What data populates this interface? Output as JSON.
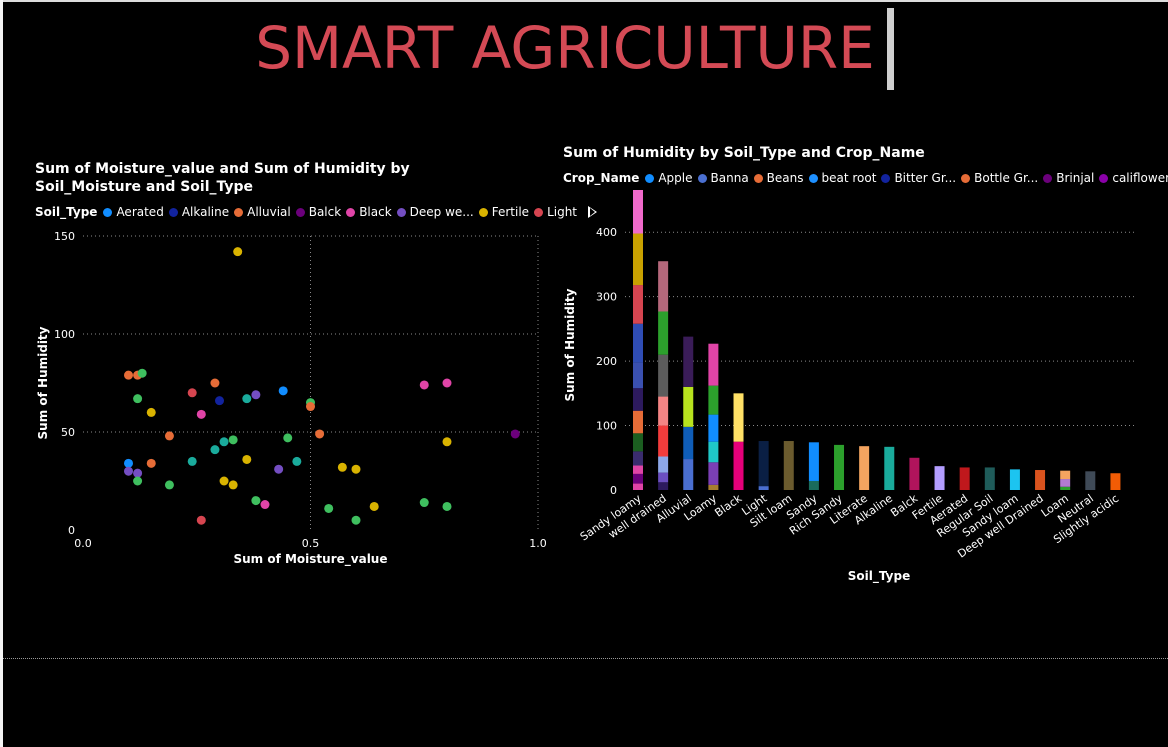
{
  "page": {
    "title": "SMART AGRICULTURE"
  },
  "chart_data": [
    {
      "type": "scatter",
      "title": "Sum of Moisture_value and Sum of Humidity by Soil_Moisture and Soil_Type",
      "xlabel": "Sum of Moisture_value",
      "ylabel": "Sum of Humidity",
      "xlim": [
        0,
        1
      ],
      "ylim": [
        0,
        150
      ],
      "x_ticks": [
        "0.0",
        "0.5",
        "1.0"
      ],
      "y_ticks": [
        "0",
        "50",
        "100",
        "150"
      ],
      "grid": true,
      "legend": {
        "title": "Soil_Type",
        "placement": "top",
        "entries": [
          {
            "name": "Aerated",
            "color": "#118DFF"
          },
          {
            "name": "Alkaline",
            "color": "#12239E"
          },
          {
            "name": "Alluvial",
            "color": "#E66C37"
          },
          {
            "name": "Balck",
            "color": "#6B007B"
          },
          {
            "name": "Black",
            "color": "#E044A7"
          },
          {
            "name": "Deep we...",
            "color": "#744EC2"
          },
          {
            "name": "Fertile",
            "color": "#D9B300"
          },
          {
            "name": "Light",
            "color": "#D64550"
          }
        ]
      },
      "points": [
        {
          "x": 0.1,
          "y": 79,
          "color": "#E66C37"
        },
        {
          "x": 0.12,
          "y": 79,
          "color": "#E66C37"
        },
        {
          "x": 0.13,
          "y": 80,
          "color": "#3FBF5F"
        },
        {
          "x": 0.12,
          "y": 67,
          "color": "#3FBF5F"
        },
        {
          "x": 0.15,
          "y": 60,
          "color": "#D9B300"
        },
        {
          "x": 0.1,
          "y": 34,
          "color": "#118DFF"
        },
        {
          "x": 0.1,
          "y": 30,
          "color": "#744EC2"
        },
        {
          "x": 0.12,
          "y": 29,
          "color": "#744EC2"
        },
        {
          "x": 0.12,
          "y": 25,
          "color": "#3FBF5F"
        },
        {
          "x": 0.15,
          "y": 34,
          "color": "#E66C37"
        },
        {
          "x": 0.19,
          "y": 48,
          "color": "#E66C37"
        },
        {
          "x": 0.19,
          "y": 23,
          "color": "#3FBF5F"
        },
        {
          "x": 0.24,
          "y": 70,
          "color": "#D64550"
        },
        {
          "x": 0.24,
          "y": 35,
          "color": "#1AAB9C"
        },
        {
          "x": 0.26,
          "y": 59,
          "color": "#E044A7"
        },
        {
          "x": 0.26,
          "y": 5,
          "color": "#D64550"
        },
        {
          "x": 0.29,
          "y": 75,
          "color": "#E66C37"
        },
        {
          "x": 0.3,
          "y": 66,
          "color": "#12239E"
        },
        {
          "x": 0.29,
          "y": 41,
          "color": "#1AAB9C"
        },
        {
          "x": 0.31,
          "y": 45,
          "color": "#1AAB9C"
        },
        {
          "x": 0.33,
          "y": 46,
          "color": "#3FBF5F"
        },
        {
          "x": 0.31,
          "y": 25,
          "color": "#D9B300"
        },
        {
          "x": 0.33,
          "y": 23,
          "color": "#D9B300"
        },
        {
          "x": 0.34,
          "y": 142,
          "color": "#D9B300"
        },
        {
          "x": 0.36,
          "y": 67,
          "color": "#1AAB9C"
        },
        {
          "x": 0.38,
          "y": 69,
          "color": "#744EC2"
        },
        {
          "x": 0.36,
          "y": 36,
          "color": "#D9B300"
        },
        {
          "x": 0.38,
          "y": 15,
          "color": "#3FBF5F"
        },
        {
          "x": 0.4,
          "y": 13,
          "color": "#E044A7"
        },
        {
          "x": 0.43,
          "y": 31,
          "color": "#744EC2"
        },
        {
          "x": 0.44,
          "y": 71,
          "color": "#118DFF"
        },
        {
          "x": 0.45,
          "y": 47,
          "color": "#3FBF5F"
        },
        {
          "x": 0.47,
          "y": 35,
          "color": "#1AAB9C"
        },
        {
          "x": 0.5,
          "y": 65,
          "color": "#3FBF5F"
        },
        {
          "x": 0.5,
          "y": 63,
          "color": "#E66C37"
        },
        {
          "x": 0.52,
          "y": 49,
          "color": "#E66C37"
        },
        {
          "x": 0.54,
          "y": 11,
          "color": "#3FBF5F"
        },
        {
          "x": 0.57,
          "y": 32,
          "color": "#D9B300"
        },
        {
          "x": 0.6,
          "y": 31,
          "color": "#D9B300"
        },
        {
          "x": 0.6,
          "y": 5,
          "color": "#3FBF5F"
        },
        {
          "x": 0.64,
          "y": 12,
          "color": "#D9B300"
        },
        {
          "x": 0.75,
          "y": 74,
          "color": "#E044A7"
        },
        {
          "x": 0.8,
          "y": 75,
          "color": "#E044A7"
        },
        {
          "x": 0.8,
          "y": 45,
          "color": "#D9B300"
        },
        {
          "x": 0.75,
          "y": 14,
          "color": "#3FBF5F"
        },
        {
          "x": 0.8,
          "y": 12,
          "color": "#3FBF5F"
        },
        {
          "x": 0.95,
          "y": 49,
          "color": "#6B007B"
        }
      ]
    },
    {
      "type": "bar",
      "stacked": true,
      "title": "Sum of Humidity by Soil_Type and Crop_Name",
      "xlabel": "Soil_Type",
      "ylabel": "Sum of Humidity",
      "ylim": [
        0,
        450
      ],
      "y_ticks": [
        "0",
        "100",
        "200",
        "300",
        "400"
      ],
      "grid": true,
      "legend": {
        "title": "Crop_Name",
        "placement": "top",
        "entries": [
          {
            "name": "Apple",
            "color": "#118DFF"
          },
          {
            "name": "Banna",
            "color": "#4A6FD1"
          },
          {
            "name": "Beans",
            "color": "#E66C37"
          },
          {
            "name": "beat root",
            "color": "#1E90FF"
          },
          {
            "name": "Bitter Gr...",
            "color": "#12239E"
          },
          {
            "name": "Bottle Gr...",
            "color": "#E66C37"
          },
          {
            "name": "Brinjal",
            "color": "#6B007B"
          },
          {
            "name": "califlower",
            "color": "#8A00A8"
          }
        ]
      },
      "categories": [
        "Sandy loamy",
        "well drained",
        "Alluvial",
        "Loamy",
        "Black",
        "Light",
        "Silt loam",
        "Sandy",
        "Rich Sandy",
        "Literate",
        "Alkaline",
        "Balck",
        "Fertile",
        "Aerated",
        "Regular Soil",
        "Sandy loam",
        "Deep well Drained",
        "Loam",
        "Neutral",
        "Slightly acidic"
      ],
      "bars": [
        [
          {
            "v": 10,
            "c": "#E044A7"
          },
          {
            "v": 15,
            "c": "#6B007B"
          },
          {
            "v": 13,
            "c": "#E044A7"
          },
          {
            "v": 22,
            "c": "#3A2C6E"
          },
          {
            "v": 28,
            "c": "#1B5E20"
          },
          {
            "v": 35,
            "c": "#E66C37"
          },
          {
            "v": 35,
            "c": "#2D1A5E"
          },
          {
            "v": 40,
            "c": "#3A50B0"
          },
          {
            "v": 60,
            "c": "#2F4DB5"
          },
          {
            "v": 60,
            "c": "#D64550"
          },
          {
            "v": 80,
            "c": "#C9A100"
          },
          {
            "v": 80,
            "c": "#F06ACB"
          }
        ],
        [
          {
            "v": 12,
            "c": "#2D1A5E"
          },
          {
            "v": 15,
            "c": "#6B4FC0"
          },
          {
            "v": 25,
            "c": "#8DA7E8"
          },
          {
            "v": 48,
            "c": "#F23C3C"
          },
          {
            "v": 45,
            "c": "#F48484"
          },
          {
            "v": 65,
            "c": "#5C5C5C"
          },
          {
            "v": 67,
            "c": "#2CA02C"
          },
          {
            "v": 78,
            "c": "#B5687B"
          }
        ],
        [
          {
            "v": 48,
            "c": "#4A6FD1"
          },
          {
            "v": 50,
            "c": "#0F5DB8"
          },
          {
            "v": 62,
            "c": "#B8E31E"
          },
          {
            "v": 78,
            "c": "#3A1C58"
          }
        ],
        [
          {
            "v": 8,
            "c": "#A67D2F"
          },
          {
            "v": 35,
            "c": "#7B3FB5"
          },
          {
            "v": 32,
            "c": "#1FC7C7"
          },
          {
            "v": 42,
            "c": "#118DFF"
          },
          {
            "v": 45,
            "c": "#2CA02C"
          },
          {
            "v": 65,
            "c": "#E044A7"
          }
        ],
        [
          {
            "v": 75,
            "c": "#E6007A"
          },
          {
            "v": 75,
            "c": "#FFE066"
          }
        ],
        [
          {
            "v": 6,
            "c": "#4A6FD1"
          },
          {
            "v": 70,
            "c": "#0A1F44"
          }
        ],
        [
          {
            "v": 76,
            "c": "#6B5B2E"
          }
        ],
        [
          {
            "v": 14,
            "c": "#1A6B5C"
          },
          {
            "v": 60,
            "c": "#118DFF"
          }
        ],
        [
          {
            "v": 70,
            "c": "#2CA02C"
          }
        ],
        [
          {
            "v": 68,
            "c": "#F4A460"
          }
        ],
        [
          {
            "v": 67,
            "c": "#1AAB9C"
          }
        ],
        [
          {
            "v": 50,
            "c": "#B0145C"
          }
        ],
        [
          {
            "v": 37,
            "c": "#B39DFF"
          }
        ],
        [
          {
            "v": 35,
            "c": "#C0181C"
          }
        ],
        [
          {
            "v": 35,
            "c": "#1F5C5A"
          }
        ],
        [
          {
            "v": 32,
            "c": "#1CC4F0"
          }
        ],
        [
          {
            "v": 31,
            "c": "#D9531E"
          }
        ],
        [
          {
            "v": 5,
            "c": "#2CA02C"
          },
          {
            "v": 12,
            "c": "#B37BD0"
          },
          {
            "v": 13,
            "c": "#F4A460"
          }
        ],
        [
          {
            "v": 29,
            "c": "#3F4A57"
          }
        ],
        [
          {
            "v": 26,
            "c": "#F25C05"
          }
        ]
      ]
    }
  ]
}
